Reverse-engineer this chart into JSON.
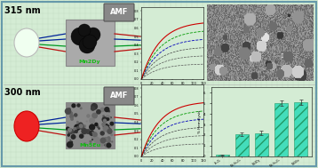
{
  "bg_color": "#d4ecd4",
  "grid_color": "#b8d8b8",
  "border_color": "#6699aa",
  "top_label": "315 nm",
  "bottom_label": "300 nm",
  "amf_label": "AMF",
  "mn2dy_label": "Mn2Dy",
  "mn5eu_label": "Mn5Eu",
  "mn_label_color": "#11bb11",
  "cell_treatment_label": "Cell treatment",
  "hemolysis_label": "% Hemolysis",
  "bar_categories": [
    "Fe₃O₄",
    "Mn₂Fe₂O₄",
    "Mn2Dy",
    "Mn₂Fe₂O₄",
    "Mn5Eu"
  ],
  "bar_values": [
    0.12,
    2.1,
    2.2,
    5.0,
    5.1
  ],
  "bar_color": "#44ddbb",
  "bar_hatch": "///",
  "bar_edge_color": "#229966",
  "curve_colors": [
    "#888888",
    "#777777",
    "#555555",
    "#0000cc",
    "#009900",
    "#cc0000"
  ],
  "arrow_colors": [
    "#003399",
    "#003399",
    "#009933",
    "#cc1111"
  ],
  "label_fontsize": 7,
  "amf_fontsize": 6
}
